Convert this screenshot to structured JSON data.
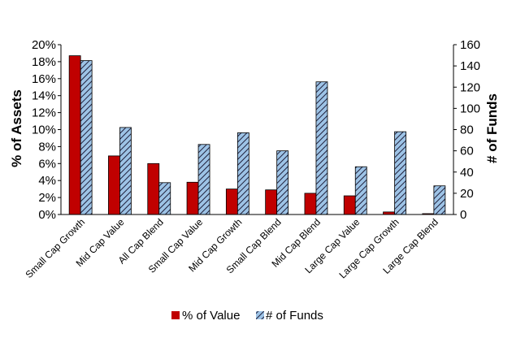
{
  "chart_data": {
    "type": "bar",
    "categories": [
      "Small Cap Growth",
      "Mid Cap Value",
      "All Cap Blend",
      "Small Cap Value",
      "Mid Cap Growth",
      "Small Cap Blend",
      "Mid Cap Blend",
      "Large Cap Value",
      "Large Cap Growth",
      "Large Cap Blend"
    ],
    "series": [
      {
        "name": "% of Value",
        "axis": "left",
        "color": "#c00000",
        "values": [
          18.7,
          6.9,
          6.0,
          3.8,
          3.0,
          2.9,
          2.5,
          2.2,
          0.3,
          0.1
        ]
      },
      {
        "name": "# of Funds",
        "axis": "right",
        "color": "#9dc3e6",
        "pattern": "diagonal-hatch",
        "values": [
          145,
          82,
          30,
          66,
          77,
          60,
          125,
          45,
          78,
          27
        ]
      }
    ],
    "ylabel": "% of Assets",
    "ylabel_right": "# of Funds",
    "ylim": [
      0,
      20
    ],
    "ylim_right": [
      0,
      160
    ],
    "yticks_left": [
      "0%",
      "2%",
      "4%",
      "6%",
      "8%",
      "10%",
      "12%",
      "14%",
      "16%",
      "18%",
      "20%"
    ],
    "yticks_right": [
      "0",
      "20",
      "40",
      "60",
      "80",
      "100",
      "120",
      "140",
      "160"
    ],
    "grid": false,
    "legend": "bottom"
  }
}
